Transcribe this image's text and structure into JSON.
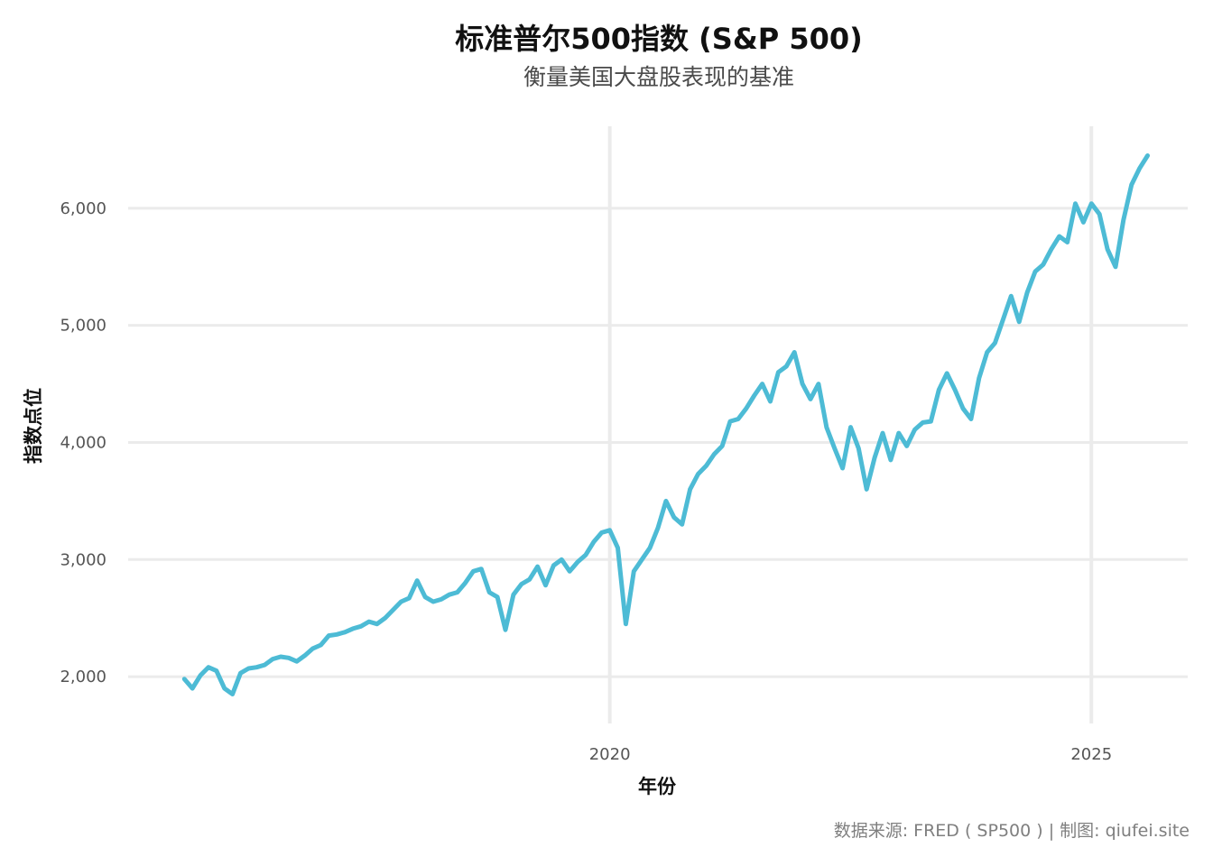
{
  "chart_data": {
    "type": "line",
    "title": "标准普尔500指数 (S&P 500)",
    "subtitle": "衡量美国大盘股表现的基准",
    "xlabel": "年份",
    "ylabel": "指数点位",
    "caption": "数据来源: FRED ( SP500 ) | 制图: qiufei.site",
    "x_ticks": [
      "2020",
      "2025"
    ],
    "y_ticks": [
      "2,000",
      "3,000",
      "4,000",
      "5,000",
      "6,000"
    ],
    "xlim": [
      "2015-01",
      "2026-01"
    ],
    "ylim": [
      1600,
      6700
    ],
    "grid": true,
    "line_color": "#4DBBD5",
    "series": [
      {
        "x": [
          "2015-08",
          "2015-09",
          "2015-10",
          "2015-11",
          "2015-12",
          "2016-01",
          "2016-02",
          "2016-03",
          "2016-04",
          "2016-05",
          "2016-06",
          "2016-07",
          "2016-08",
          "2016-09",
          "2016-10",
          "2016-11",
          "2016-12",
          "2017-01",
          "2017-02",
          "2017-03",
          "2017-04",
          "2017-05",
          "2017-06",
          "2017-07",
          "2017-08",
          "2017-09",
          "2017-10",
          "2017-11",
          "2017-12",
          "2018-01",
          "2018-02",
          "2018-03",
          "2018-04",
          "2018-05",
          "2018-06",
          "2018-07",
          "2018-08",
          "2018-09",
          "2018-10",
          "2018-11",
          "2018-12",
          "2019-01",
          "2019-02",
          "2019-03",
          "2019-04",
          "2019-05",
          "2019-06",
          "2019-07",
          "2019-08",
          "2019-09",
          "2019-10",
          "2019-11",
          "2019-12",
          "2020-01",
          "2020-02",
          "2020-03",
          "2020-04",
          "2020-05",
          "2020-06",
          "2020-07",
          "2020-08",
          "2020-09",
          "2020-10",
          "2020-11",
          "2020-12",
          "2021-01",
          "2021-02",
          "2021-03",
          "2021-04",
          "2021-05",
          "2021-06",
          "2021-07",
          "2021-08",
          "2021-09",
          "2021-10",
          "2021-11",
          "2021-12",
          "2022-01",
          "2022-02",
          "2022-03",
          "2022-04",
          "2022-05",
          "2022-06",
          "2022-07",
          "2022-08",
          "2022-09",
          "2022-10",
          "2022-11",
          "2022-12",
          "2023-01",
          "2023-02",
          "2023-03",
          "2023-04",
          "2023-05",
          "2023-06",
          "2023-07",
          "2023-08",
          "2023-09",
          "2023-10",
          "2023-11",
          "2023-12",
          "2024-01",
          "2024-02",
          "2024-03",
          "2024-04",
          "2024-05",
          "2024-06",
          "2024-07",
          "2024-08",
          "2024-09",
          "2024-10",
          "2024-11",
          "2024-12",
          "2025-01",
          "2025-02",
          "2025-03",
          "2025-04",
          "2025-05",
          "2025-06",
          "2025-07",
          "2025-08"
        ],
        "y": [
          1980,
          1900,
          2010,
          2080,
          2050,
          1900,
          1850,
          2030,
          2070,
          2080,
          2100,
          2150,
          2170,
          2160,
          2130,
          2180,
          2240,
          2270,
          2350,
          2360,
          2380,
          2410,
          2430,
          2470,
          2450,
          2500,
          2570,
          2640,
          2670,
          2820,
          2680,
          2640,
          2660,
          2700,
          2720,
          2800,
          2900,
          2920,
          2720,
          2680,
          2400,
          2700,
          2790,
          2830,
          2940,
          2780,
          2950,
          3000,
          2900,
          2980,
          3040,
          3150,
          3230,
          3250,
          3100,
          2450,
          2900,
          3000,
          3100,
          3270,
          3500,
          3360,
          3300,
          3600,
          3730,
          3800,
          3900,
          3970,
          4180,
          4200,
          4290,
          4400,
          4500,
          4350,
          4600,
          4650,
          4770,
          4500,
          4370,
          4500,
          4130,
          3950,
          3780,
          4130,
          3950,
          3600,
          3870,
          4080,
          3850,
          4080,
          3970,
          4110,
          4170,
          4180,
          4450,
          4590,
          4450,
          4290,
          4200,
          4550,
          4770,
          4850,
          5050,
          5250,
          5030,
          5280,
          5460,
          5520,
          5650,
          5760,
          5710,
          6040,
          5880,
          6040,
          5950,
          5650,
          5500,
          5900,
          6200,
          6340,
          6450
        ]
      }
    ]
  }
}
